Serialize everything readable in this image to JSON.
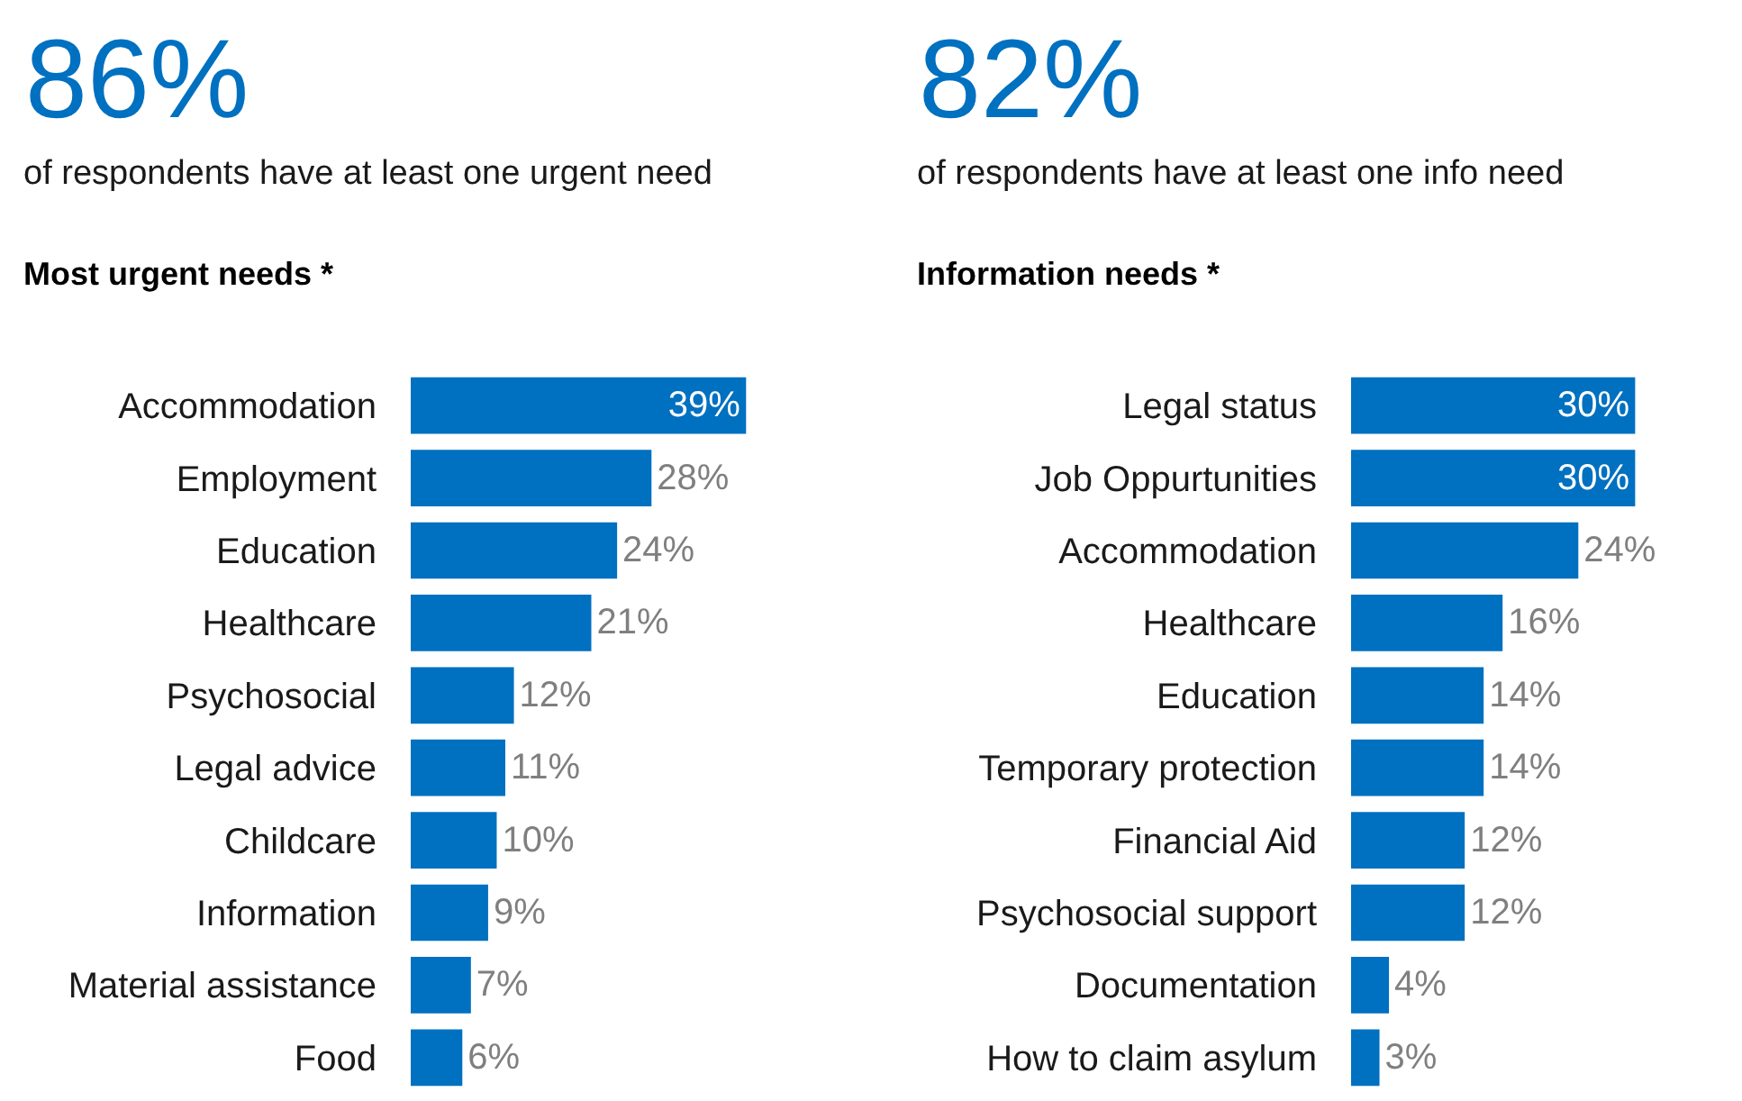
{
  "chart_data": [
    {
      "type": "bar",
      "orientation": "horizontal",
      "title": "86%",
      "subtitle": "of respondents have at least one urgent need",
      "annotations": [
        "Most urgent needs *"
      ],
      "categories": [
        "Accommodation",
        "Employment",
        "Education",
        "Healthcare",
        "Psychosocial",
        "Legal advice",
        "Childcare",
        "Information",
        "Material assistance",
        "Food"
      ],
      "values": [
        39,
        28,
        24,
        21,
        12,
        11,
        10,
        9,
        7,
        6
      ],
      "value_labels": [
        "39%",
        "28%",
        "24%",
        "21%",
        "12%",
        "11%",
        "10%",
        "9%",
        "7%",
        "6%"
      ],
      "color": "#0070c0",
      "tick_labels": "y"
    },
    {
      "type": "bar",
      "orientation": "horizontal",
      "title": "82%",
      "subtitle": "of respondents have at least one info need",
      "annotations": [
        "Information needs *"
      ],
      "categories": [
        "Legal status",
        "Job Oppurtunities",
        "Accommodation",
        "Healthcare",
        "Education",
        "Temporary protection",
        "Financial Aid",
        "Psychosocial support",
        "Documentation",
        "How to claim asylum"
      ],
      "values": [
        30,
        30,
        24,
        16,
        14,
        14,
        12,
        12,
        4,
        3
      ],
      "value_labels": [
        "30%",
        "30%",
        "24%",
        "16%",
        "14%",
        "14%",
        "12%",
        "12%",
        "4%",
        "3%"
      ],
      "color": "#0070c0",
      "tick_labels": "y"
    }
  ]
}
